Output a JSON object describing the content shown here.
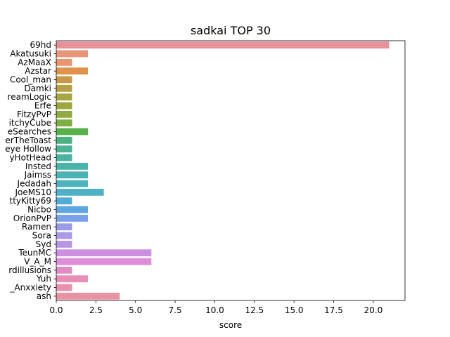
{
  "chart_data": {
    "type": "bar",
    "orientation": "horizontal",
    "title": "sadkai TOP 30",
    "xlabel": "score",
    "ylabel": "",
    "xlim": [
      0,
      22
    ],
    "xticks": [
      0.0,
      2.5,
      5.0,
      7.5,
      10.0,
      12.5,
      15.0,
      17.5,
      20.0
    ],
    "xtick_labels": [
      "0.0",
      "2.5",
      "5.0",
      "7.5",
      "10.0",
      "12.5",
      "15.0",
      "17.5",
      "20.0"
    ],
    "grid": false,
    "categories": [
      "69hd",
      "Akatusuki",
      "AzMaaX",
      "Azstar",
      "Cool_man",
      "Damki",
      "reamLogic",
      "Erfe",
      "FitzyPvP",
      "itchyCube",
      "eSearches",
      "erTheToast",
      "eye Hollow",
      "yHotHead",
      "Insted",
      "Jaimss",
      "Jedadah",
      "JoeMS10",
      "ttyKitty69",
      "Nicbo",
      "OrionPvP",
      "Ramen",
      "Sora",
      "Syd",
      "TeunMC",
      "V_A_M",
      "rdillusions",
      "Yuh",
      "_Anxxiety",
      "ash"
    ],
    "values": [
      21,
      2,
      1,
      2,
      1,
      1,
      1,
      1,
      1,
      1,
      2,
      1,
      1,
      1,
      2,
      2,
      2,
      3,
      1,
      2,
      2,
      1,
      1,
      1,
      6,
      6,
      1,
      2,
      1,
      4
    ],
    "colors": [
      "#e8919a",
      "#e8967a",
      "#e8966e",
      "#e0914a",
      "#c69a48",
      "#b4a045",
      "#a8a543",
      "#9ea642",
      "#92aa42",
      "#7fae42",
      "#58b04c",
      "#4db182",
      "#4db296",
      "#4cb3a2",
      "#4cb3ab",
      "#4db3b4",
      "#4db4be",
      "#4eb1c6",
      "#52acd4",
      "#5ea6e2",
      "#7aa0ea",
      "#9a9ce8",
      "#ad9ae6",
      "#b797e4",
      "#cc8fe0",
      "#e08dd9",
      "#e08dc5",
      "#e88fb8",
      "#e891ae",
      "#e893a3"
    ]
  }
}
